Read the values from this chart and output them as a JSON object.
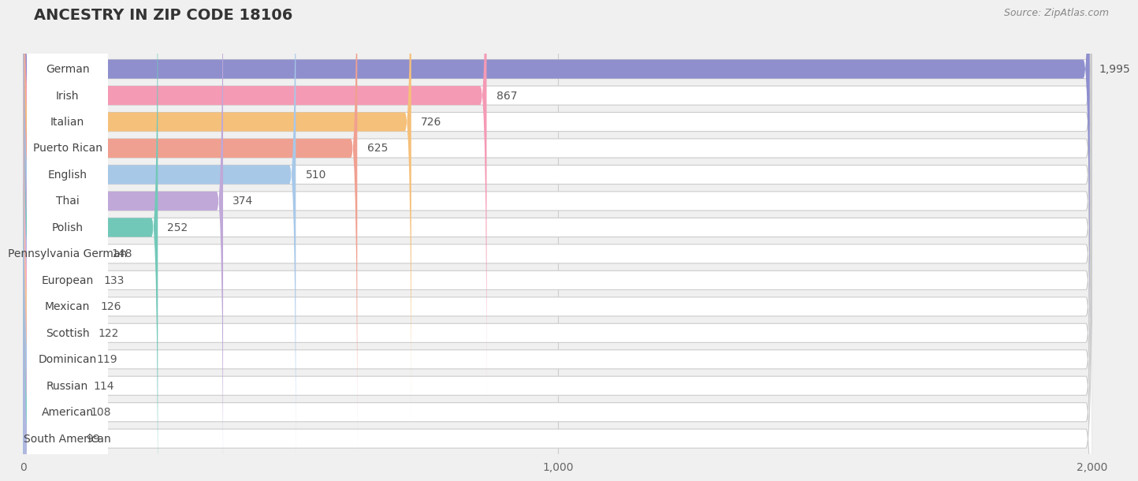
{
  "title": "ANCESTRY IN ZIP CODE 18106",
  "source": "Source: ZipAtlas.com",
  "categories": [
    "German",
    "Irish",
    "Italian",
    "Puerto Rican",
    "English",
    "Thai",
    "Polish",
    "Pennsylvania German",
    "European",
    "Mexican",
    "Scottish",
    "Dominican",
    "Russian",
    "American",
    "South American"
  ],
  "values": [
    1995,
    867,
    726,
    625,
    510,
    374,
    252,
    148,
    133,
    126,
    122,
    119,
    114,
    108,
    99
  ],
  "bar_colors": [
    "#8f8fce",
    "#f49ab5",
    "#f5c07a",
    "#f0a090",
    "#a8c8e8",
    "#c0a8d8",
    "#72c8b8",
    "#b8b8e8",
    "#f8a8c8",
    "#f5c896",
    "#f0b8a8",
    "#a8c8e8",
    "#c8b0d8",
    "#80d0c8",
    "#b0b8e0"
  ],
  "xlim_max": 2000,
  "xticks": [
    0,
    1000,
    2000
  ],
  "xticklabels": [
    "0",
    "1,000",
    "2,000"
  ],
  "bg_color": "#f0f0f0",
  "row_bg_color": "#ffffff",
  "title_fontsize": 14,
  "source_fontsize": 9,
  "label_fontsize": 10,
  "value_fontsize": 10
}
